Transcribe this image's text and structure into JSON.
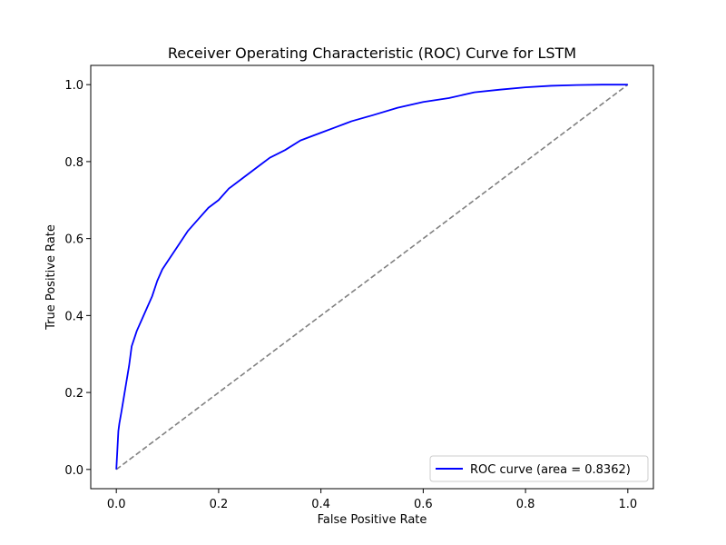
{
  "chart_data": {
    "type": "line",
    "title": "Receiver Operating Characteristic (ROC) Curve for LSTM",
    "xlabel": "False Positive Rate",
    "ylabel": "True Positive Rate",
    "xlim": [
      -0.05,
      1.05
    ],
    "ylim": [
      -0.05,
      1.05
    ],
    "xticks": [
      "0.0",
      "0.2",
      "0.4",
      "0.6",
      "0.8",
      "1.0"
    ],
    "yticks": [
      "0.0",
      "0.2",
      "0.4",
      "0.6",
      "0.8",
      "1.0"
    ],
    "grid": false,
    "legend_position": "lower-right",
    "series": [
      {
        "name": "ROC curve (area = 0.8362)",
        "color": "#0000ff",
        "style": "solid",
        "x": [
          0.0,
          0.002,
          0.004,
          0.006,
          0.01,
          0.015,
          0.02,
          0.025,
          0.03,
          0.035,
          0.04,
          0.05,
          0.06,
          0.07,
          0.08,
          0.09,
          0.1,
          0.12,
          0.14,
          0.16,
          0.18,
          0.2,
          0.22,
          0.25,
          0.28,
          0.3,
          0.33,
          0.36,
          0.38,
          0.4,
          0.43,
          0.46,
          0.5,
          0.55,
          0.6,
          0.65,
          0.7,
          0.75,
          0.8,
          0.85,
          0.9,
          0.95,
          1.0
        ],
        "y": [
          0.0,
          0.05,
          0.1,
          0.12,
          0.15,
          0.19,
          0.23,
          0.27,
          0.32,
          0.34,
          0.36,
          0.39,
          0.42,
          0.45,
          0.49,
          0.52,
          0.54,
          0.58,
          0.62,
          0.65,
          0.68,
          0.7,
          0.73,
          0.76,
          0.79,
          0.81,
          0.83,
          0.855,
          0.865,
          0.875,
          0.89,
          0.905,
          0.92,
          0.94,
          0.955,
          0.965,
          0.98,
          0.987,
          0.993,
          0.997,
          0.999,
          1.0,
          1.0
        ]
      },
      {
        "name": "",
        "color": "#808080",
        "style": "dashed",
        "x": [
          0.0,
          1.0
        ],
        "y": [
          0.0,
          1.0
        ]
      }
    ]
  }
}
